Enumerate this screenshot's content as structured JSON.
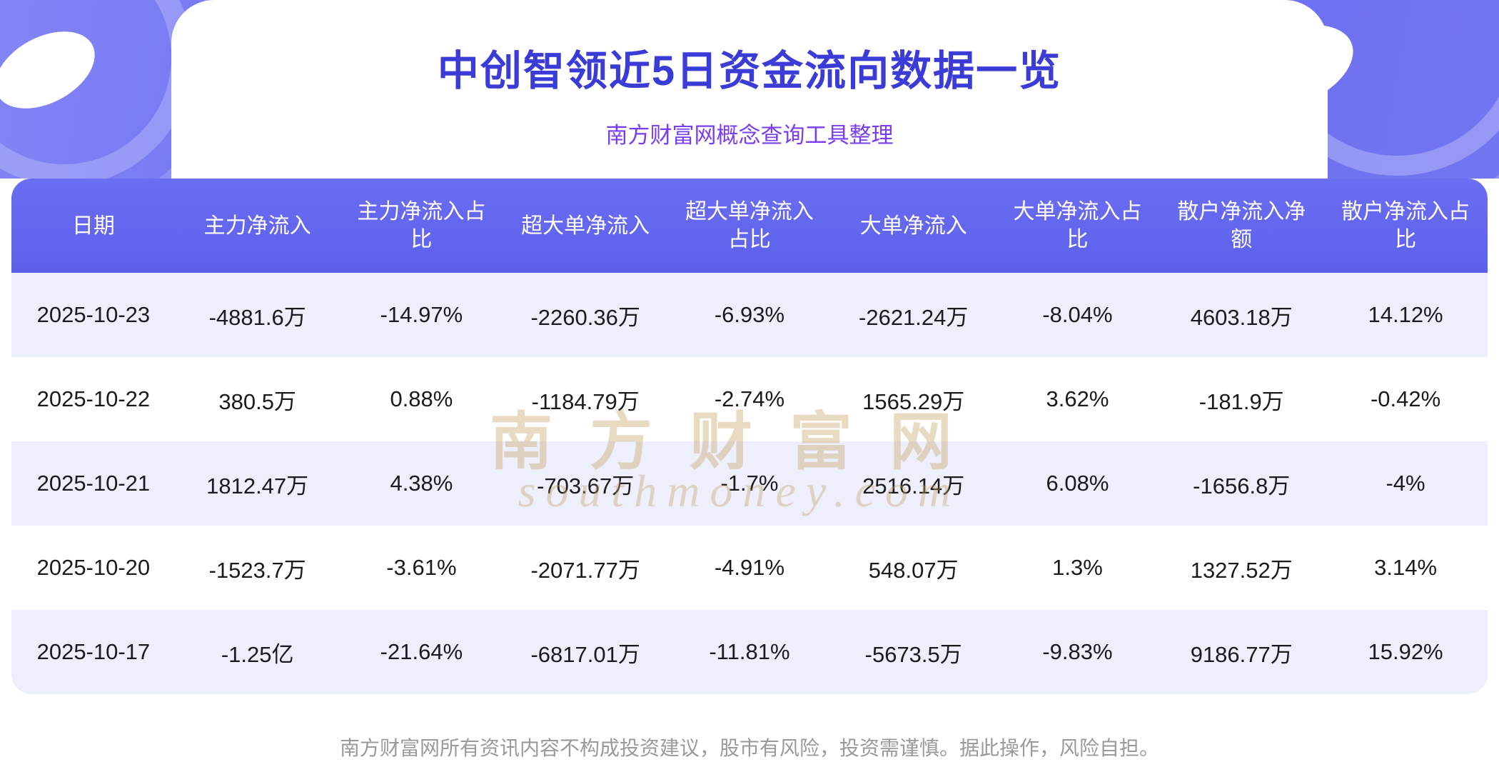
{
  "page": {
    "title": "中创智领近5日资金流向数据一览",
    "subtitle": "南方财富网概念查询工具整理",
    "footer_disclaimer": "南方财富网所有资讯内容不构成投资建议，股市有风险，投资需谨慎。据此操作，风险自担。"
  },
  "watermark": {
    "cn": "南方财富网",
    "en": "southmoney.com"
  },
  "colors": {
    "title_text": "#3b3cd8",
    "subtitle_text": "#7a3cf0",
    "banner_purple": "#6164ec",
    "header_bg": "#6366ee",
    "row_alt_bg": "#edeffc",
    "watermark_gold": "#c8a35e"
  },
  "chart_data": {
    "type": "table",
    "title": "中创智领近5日资金流向数据一览",
    "subtitle": "南方财富网概念查询工具整理",
    "columns": [
      "日期",
      "主力净流入",
      "主力净流入占比",
      "超大单净流入",
      "超大单净流入占比",
      "大单净流入",
      "大单净流入占比",
      "散户净流入净额",
      "散户净流入占比"
    ],
    "rows": [
      [
        "2025-10-23",
        "-4881.6万",
        "-14.97%",
        "-2260.36万",
        "-6.93%",
        "-2621.24万",
        "-8.04%",
        "4603.18万",
        "14.12%"
      ],
      [
        "2025-10-22",
        "380.5万",
        "0.88%",
        "-1184.79万",
        "-2.74%",
        "1565.29万",
        "3.62%",
        "-181.9万",
        "-0.42%"
      ],
      [
        "2025-10-21",
        "1812.47万",
        "4.38%",
        "-703.67万",
        "-1.7%",
        "2516.14万",
        "6.08%",
        "-1656.8万",
        "-4%"
      ],
      [
        "2025-10-20",
        "-1523.7万",
        "-3.61%",
        "-2071.77万",
        "-4.91%",
        "548.07万",
        "1.3%",
        "1327.52万",
        "3.14%"
      ],
      [
        "2025-10-17",
        "-1.25亿",
        "-21.64%",
        "-6817.01万",
        "-11.81%",
        "-5673.5万",
        "-9.83%",
        "9186.77万",
        "15.92%"
      ]
    ]
  }
}
